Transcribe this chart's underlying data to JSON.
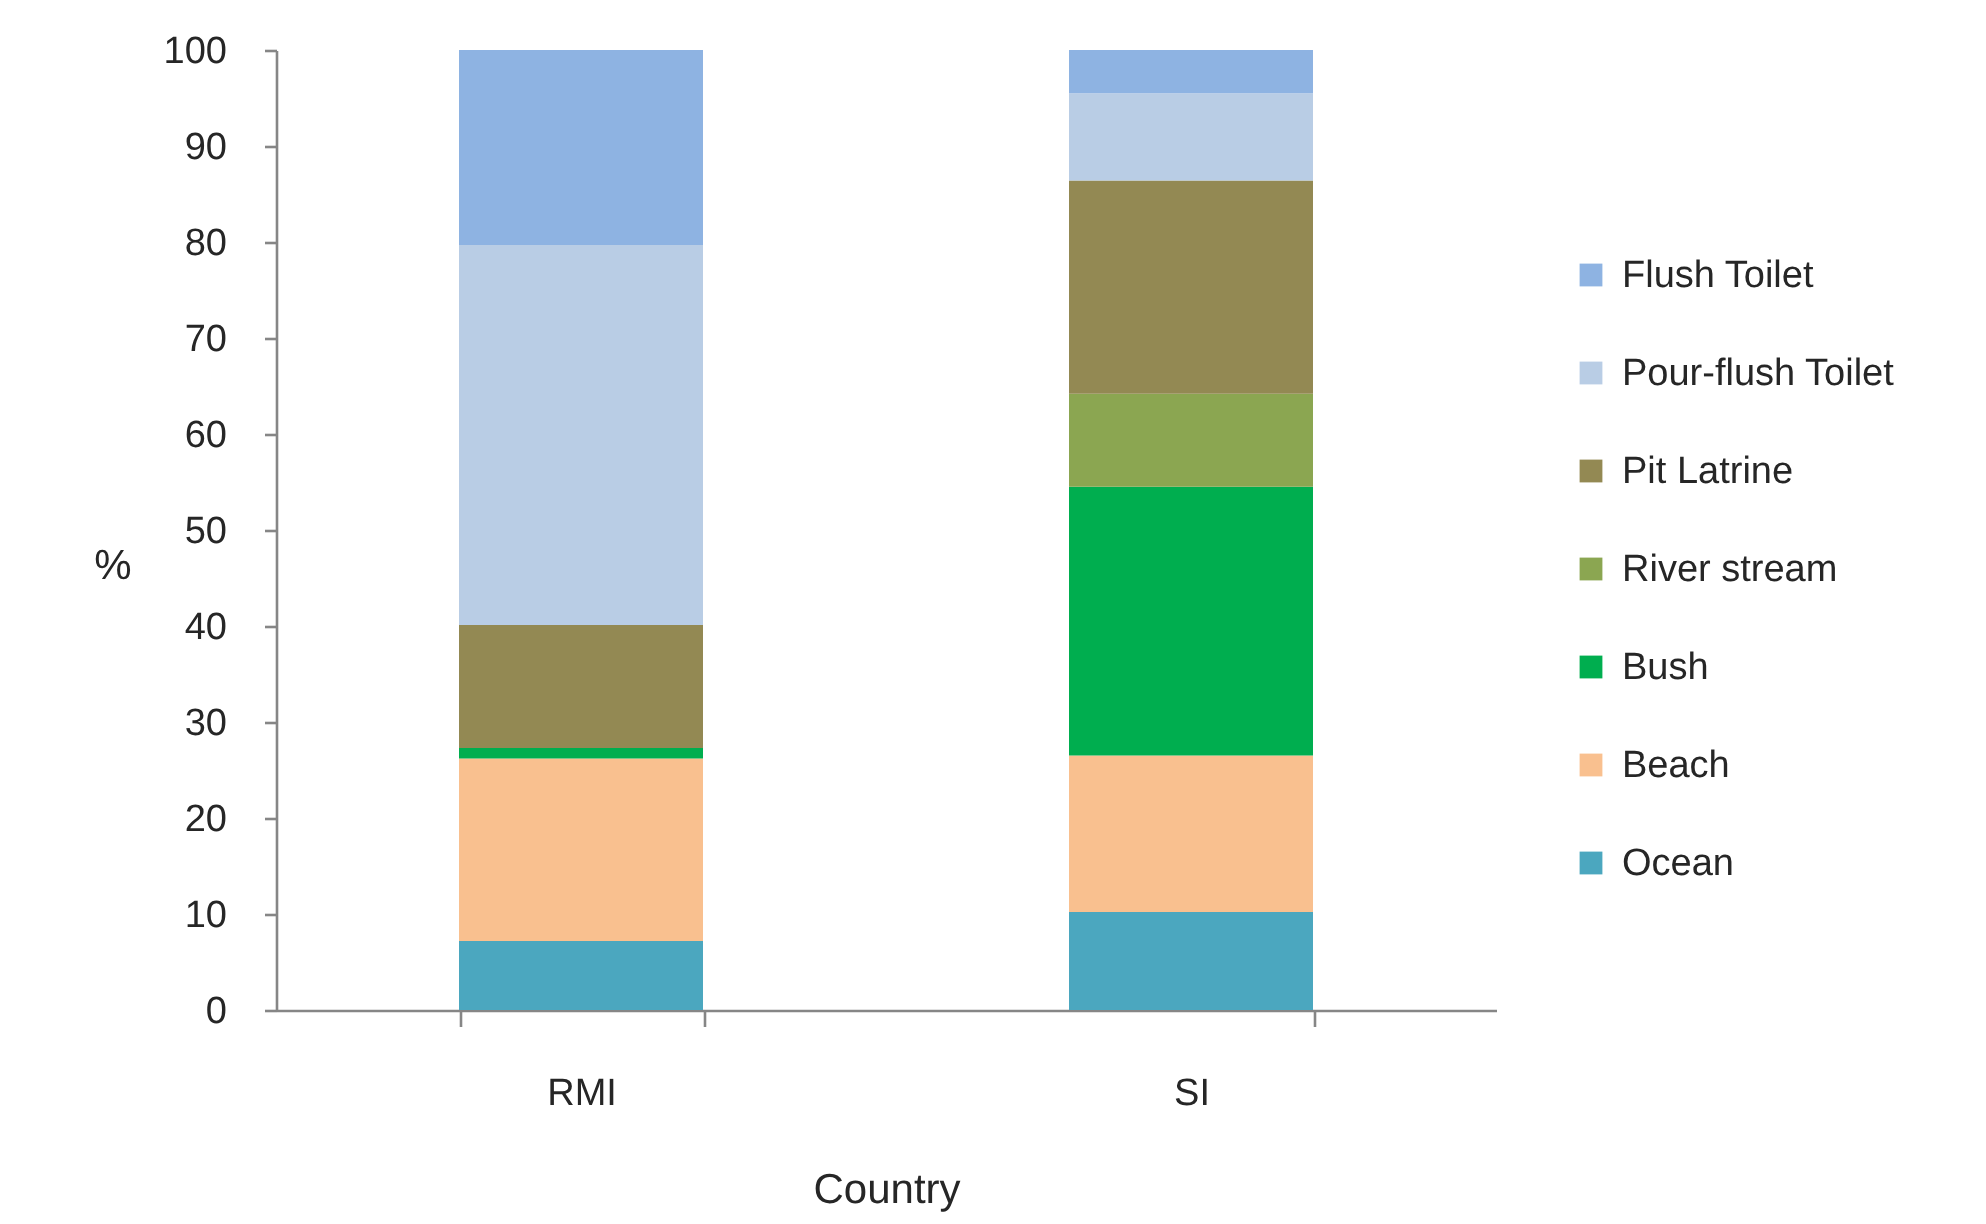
{
  "chart_data": {
    "type": "bar",
    "stacked": true,
    "xlabel": "Country",
    "ylabel": "%",
    "categories": [
      "RMI",
      "SI"
    ],
    "series": [
      {
        "name": "Ocean",
        "color": "#4ba7bf",
        "values": [
          7.2,
          10.2
        ]
      },
      {
        "name": "Beach",
        "color": "#f9c08f",
        "values": [
          19.0,
          16.3
        ]
      },
      {
        "name": "Bush",
        "color": "#00ae4f",
        "values": [
          1.1,
          28.0
        ]
      },
      {
        "name": "River stream",
        "color": "#8ba651",
        "values": [
          null,
          9.7
        ]
      },
      {
        "name": "Pit Latrine",
        "color": "#938953",
        "values": [
          12.8,
          22.2
        ]
      },
      {
        "name": "Pour-flush Toilet",
        "color": "#b9cde5",
        "values": [
          39.6,
          9.1
        ]
      },
      {
        "name": "Flush Toilet",
        "color": "#8eb3e2",
        "values": [
          20.3,
          4.5
        ]
      }
    ],
    "ylim": [
      0,
      100
    ],
    "yticks": [
      0,
      10,
      20,
      30,
      40,
      50,
      60,
      70,
      80,
      90,
      100
    ],
    "legend": "right",
    "grid": false
  }
}
